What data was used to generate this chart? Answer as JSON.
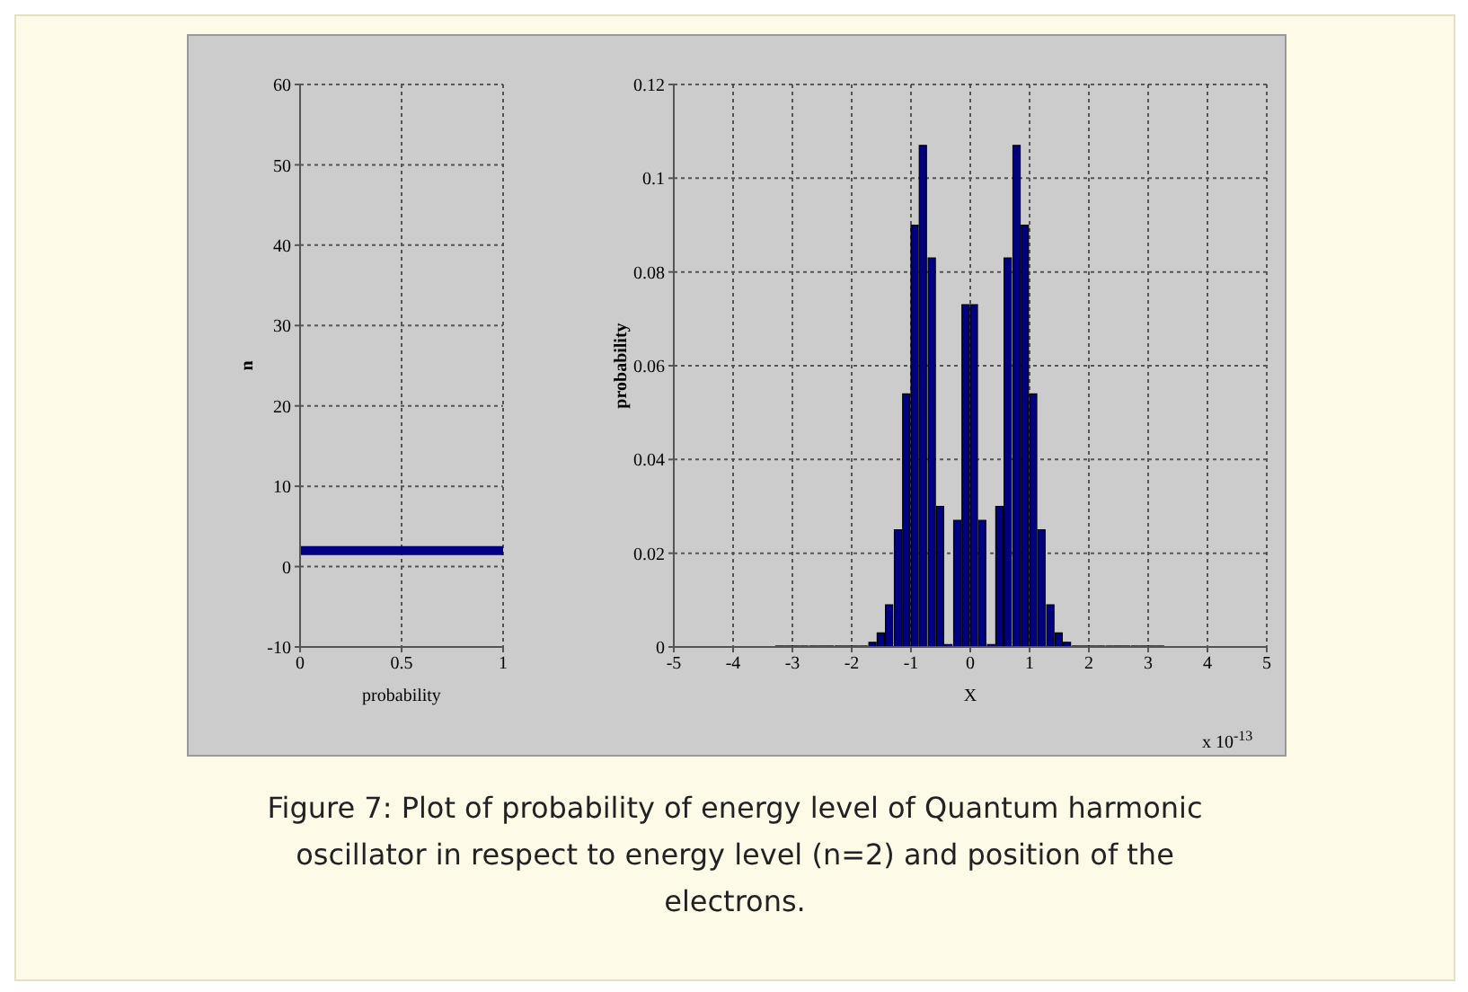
{
  "chart_data": [
    {
      "type": "line",
      "xlabel": "probability",
      "ylabel": "n",
      "x": [
        0,
        1
      ],
      "series": [
        {
          "color": "#000080",
          "values": [
            2,
            2
          ]
        }
      ],
      "xlim": [
        0,
        1
      ],
      "xticks": [
        0,
        0.5,
        1
      ],
      "ylim": [
        -10,
        60
      ],
      "yticks": [
        -10,
        0,
        10,
        20,
        30,
        40,
        50,
        60
      ],
      "grid": true,
      "marker": "none",
      "line_style": "solid"
    },
    {
      "type": "bar",
      "xlabel": "X",
      "ylabel": "probability",
      "x": [
        -3.21,
        -3.07,
        -2.93,
        -2.79,
        -2.64,
        -2.5,
        -2.36,
        -2.21,
        -2.07,
        -1.93,
        -1.79,
        -1.64,
        -1.5,
        -1.36,
        -1.21,
        -1.07,
        -0.93,
        -0.79,
        -0.64,
        -0.5,
        -0.36,
        -0.21,
        -0.07,
        0.07,
        0.21,
        0.36,
        0.5,
        0.64,
        0.79,
        0.93,
        1.07,
        1.21,
        1.36,
        1.5,
        1.64,
        1.79,
        1.93,
        2.07,
        2.21,
        2.36,
        2.5,
        2.64,
        2.79,
        2.93,
        3.07,
        3.21
      ],
      "series": [
        {
          "color": "#000080",
          "values": [
            0.0002,
            0.0002,
            0.0002,
            0.0002,
            0.0002,
            0.0002,
            0.0002,
            0.0002,
            0.0002,
            0.0002,
            0.0002,
            0.001,
            0.003,
            0.009,
            0.025,
            0.054,
            0.09,
            0.107,
            0.083,
            0.03,
            0.0005,
            0.027,
            0.073,
            0.073,
            0.027,
            0.0005,
            0.03,
            0.083,
            0.107,
            0.09,
            0.054,
            0.025,
            0.009,
            0.003,
            0.001,
            0.0002,
            0.0002,
            0.0002,
            0.0002,
            0.0002,
            0.0002,
            0.0002,
            0.0002,
            0.0002,
            0.0002,
            0.0002
          ]
        }
      ],
      "xlim": [
        -5,
        5
      ],
      "xticks": [
        -5,
        -4,
        -3,
        -2,
        -1,
        0,
        1,
        2,
        3,
        4,
        5
      ],
      "ylim": [
        0,
        0.12
      ],
      "yticks": [
        0,
        0.02,
        0.04,
        0.06,
        0.08,
        0.1,
        0.12
      ],
      "grid": true,
      "annotations": [
        "x 10$^{-13}$",
        "Figure 7: Plot of probability of energy level of Quantum harmonic oscillator in respect to energy level (n=2) and position of the electrons."
      ]
    }
  ]
}
